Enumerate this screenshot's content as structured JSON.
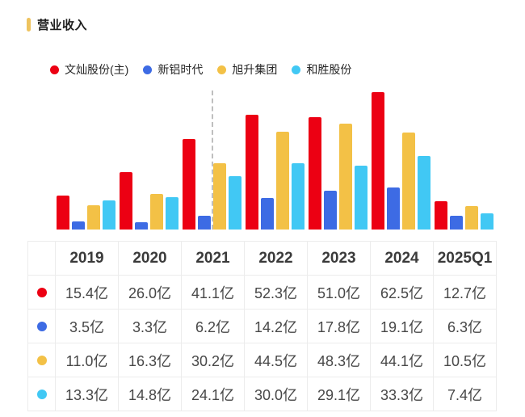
{
  "header": {
    "title": "营业收入",
    "marker_color": "#EEC35E"
  },
  "legend": {
    "items": [
      {
        "label": "文灿股份(主)",
        "color": "#EC0013"
      },
      {
        "label": "新铝时代",
        "color": "#3D6BE4"
      },
      {
        "label": "旭升集团",
        "color": "#F3C146"
      },
      {
        "label": "和胜股份",
        "color": "#41C8F4"
      }
    ]
  },
  "chart_data": {
    "type": "bar",
    "title": "营业收入",
    "unit": "亿",
    "categories": [
      "2019",
      "2020",
      "2021",
      "2022",
      "2023",
      "2024",
      "2025Q1"
    ],
    "series": [
      {
        "name": "文灿股份(主)",
        "color": "#EC0013",
        "values": [
          15.4,
          26.0,
          41.1,
          52.3,
          51.0,
          62.5,
          12.7
        ]
      },
      {
        "name": "新铝时代",
        "color": "#3D6BE4",
        "values": [
          3.5,
          3.3,
          6.2,
          14.2,
          17.8,
          19.1,
          6.3
        ]
      },
      {
        "name": "旭升集团",
        "color": "#F3C146",
        "values": [
          11.0,
          16.3,
          30.2,
          44.5,
          48.3,
          44.1,
          10.5
        ]
      },
      {
        "name": "和胜股份",
        "color": "#41C8F4",
        "values": [
          13.3,
          14.8,
          24.1,
          30.0,
          29.1,
          33.3,
          7.4
        ]
      }
    ],
    "ylim": [
      0,
      62.5
    ],
    "grid": false,
    "legend_position": "top",
    "dashed_marker": {
      "category": "2021",
      "series_index": 2,
      "color": "#bfbfbf"
    }
  },
  "table": {
    "headers": [
      "2019",
      "2020",
      "2021",
      "2022",
      "2023",
      "2024",
      "2025Q1"
    ],
    "rows": [
      {
        "dot_color": "#EC0013",
        "cells": [
          "15.4亿",
          "26.0亿",
          "41.1亿",
          "52.3亿",
          "51.0亿",
          "62.5亿",
          "12.7亿"
        ]
      },
      {
        "dot_color": "#3D6BE4",
        "cells": [
          "3.5亿",
          "3.3亿",
          "6.2亿",
          "14.2亿",
          "17.8亿",
          "19.1亿",
          "6.3亿"
        ]
      },
      {
        "dot_color": "#F3C146",
        "cells": [
          "11.0亿",
          "16.3亿",
          "30.2亿",
          "44.5亿",
          "48.3亿",
          "44.1亿",
          "10.5亿"
        ]
      },
      {
        "dot_color": "#41C8F4",
        "cells": [
          "13.3亿",
          "14.8亿",
          "24.1亿",
          "30.0亿",
          "29.1亿",
          "33.3亿",
          "7.4亿"
        ]
      }
    ]
  }
}
